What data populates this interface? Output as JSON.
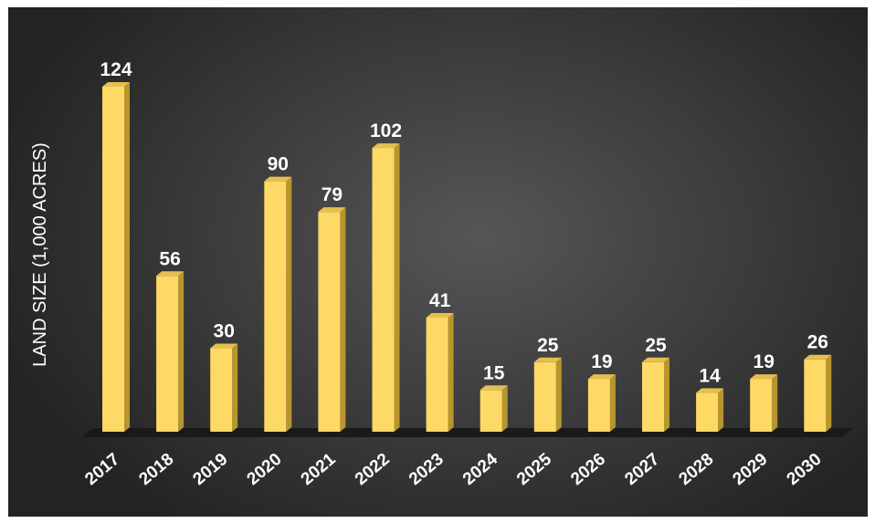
{
  "chart_data": {
    "type": "bar",
    "title": "",
    "xlabel": "",
    "ylabel": "LAND SIZE (1,000 ACRES)",
    "categories": [
      "2017",
      "2018",
      "2019",
      "2020",
      "2021",
      "2022",
      "2023",
      "2024",
      "2025",
      "2026",
      "2027",
      "2028",
      "2029",
      "2030"
    ],
    "values": [
      124,
      56,
      30,
      90,
      79,
      102,
      41,
      15,
      25,
      19,
      25,
      14,
      19,
      26
    ],
    "ylim": [
      0,
      124
    ],
    "grid": false,
    "legend": "none",
    "bar_color": "#FFD966",
    "bar_side_color": "#B8962E",
    "bar_top_color": "#E6C04F",
    "floor_color": "#1a1a1a"
  }
}
